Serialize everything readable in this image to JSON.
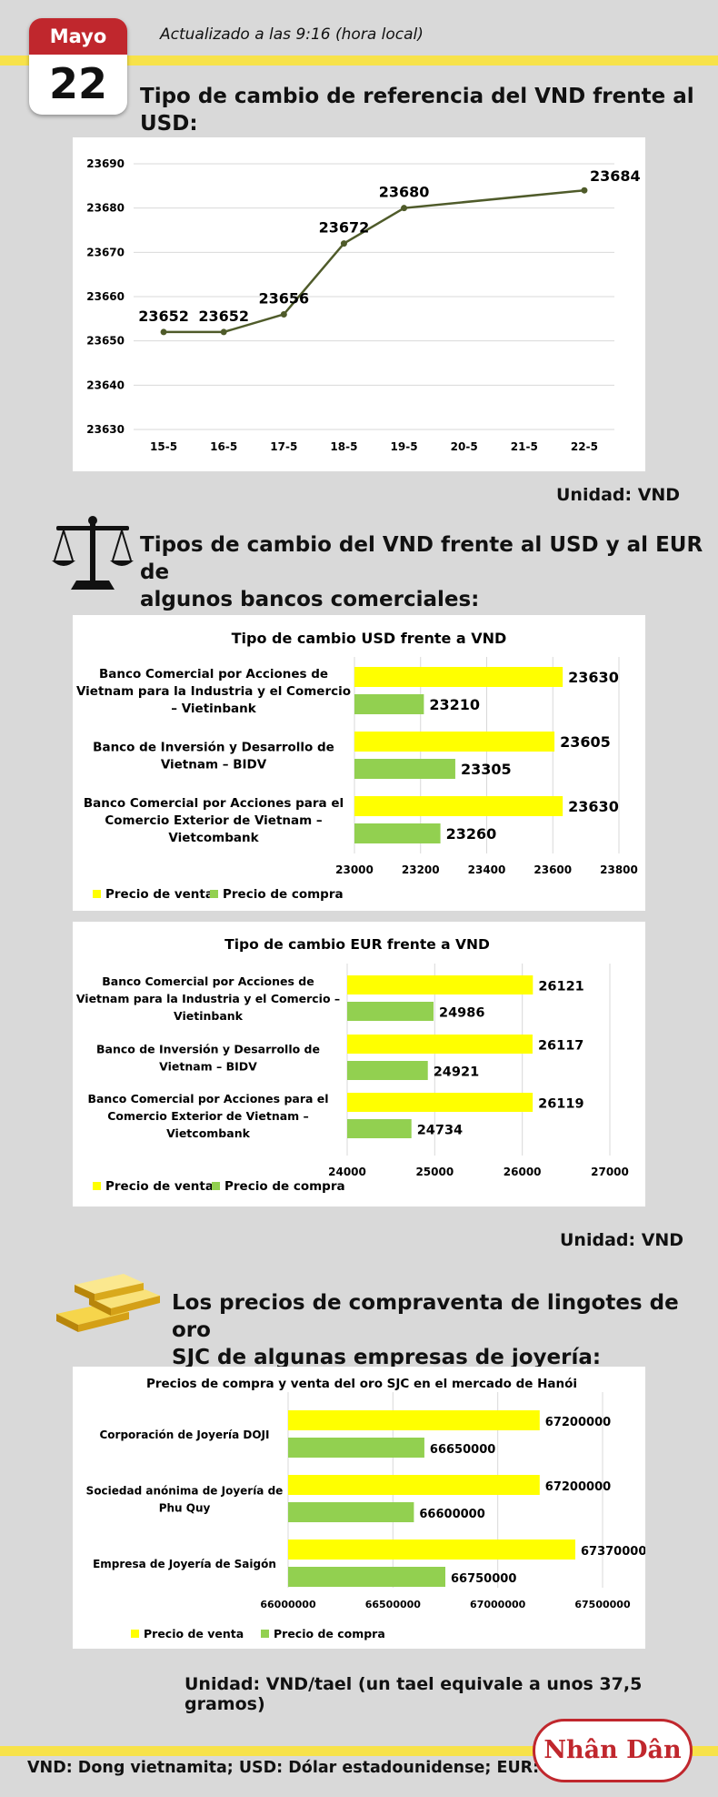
{
  "header": {
    "month": "Mayo",
    "day": "22",
    "updated": "Actualizado a las 9:16 (hora local)",
    "title": "Tipo de cambio de referencia del VND frente al USD:",
    "unit": "Unidad: VND"
  },
  "banks_section": {
    "title_line1": "Tipos de cambio del VND frente al USD y al EUR de",
    "title_line2": "algunos bancos comerciales:",
    "unit": "Unidad: VND",
    "icon": "scale-icon"
  },
  "gold_section": {
    "title_line1": "Los precios de compraventa de lingotes de oro",
    "title_line2": "SJC de algunas empresas de joyería:",
    "unit": "Unidad: VND/tael (un tael equivale a unos 37,5 gramos)",
    "icon": "gold-bars-icon"
  },
  "footer": {
    "text": "VND: Dong vietnamita; USD: Dólar estadounidense; EUR: Euro",
    "logo": "Nhân Dân"
  },
  "colors": {
    "sale": "#ffff00",
    "buy": "#92d050",
    "line": "#4f5b2a",
    "red": "#c0272d",
    "band": "#f7e24a"
  },
  "chart_data": [
    {
      "type": "line",
      "title": "",
      "categories": [
        "15-5",
        "16-5",
        "17-5",
        "18-5",
        "19-5",
        "20-5",
        "21-5",
        "22-5"
      ],
      "x": [
        "15-5",
        "16-5",
        "17-5",
        "18-5",
        "19-5",
        "22-5"
      ],
      "values": [
        23652,
        23652,
        23656,
        23672,
        23680,
        23684
      ],
      "point_indices": [
        0,
        1,
        2,
        3,
        4,
        7
      ],
      "ylim": [
        23630,
        23690
      ],
      "yticks": [
        23630,
        23640,
        23650,
        23660,
        23670,
        23680,
        23690
      ],
      "grid": true
    },
    {
      "type": "bar",
      "title": "Tipo de cambio USD frente a VND",
      "categories": [
        [
          "Banco Comercial por Acciones de",
          "Vietnam para la Industria y el Comercio",
          "– Vietinbank"
        ],
        [
          "Banco de Inversión y Desarrollo de",
          "Vietnam – BIDV"
        ],
        [
          "Banco Comercial por Acciones para el",
          "Comercio Exterior de Vietnam –",
          "Vietcombank"
        ]
      ],
      "series": [
        {
          "name": "Precio de venta",
          "values": [
            23630,
            23605,
            23630
          ]
        },
        {
          "name": "Precio de compra",
          "values": [
            23210,
            23305,
            23260
          ]
        }
      ],
      "xlim": [
        23000,
        23800
      ],
      "xticks": [
        "23000",
        "23200",
        "23400",
        "23600",
        "23800"
      ],
      "legend": "bottom-left"
    },
    {
      "type": "bar",
      "title": "Tipo de cambio EUR frente a VND",
      "categories": [
        [
          "Banco Comercial por Acciones de",
          "Vietnam para la Industria y el Comercio –",
          "Vietinbank"
        ],
        [
          "Banco de Inversión y Desarrollo de",
          "Vietnam – BIDV"
        ],
        [
          "Banco Comercial por Acciones para el",
          "Comercio Exterior de Vietnam –",
          "Vietcombank"
        ]
      ],
      "series": [
        {
          "name": "Precio de venta",
          "values": [
            26121,
            26117,
            26119
          ]
        },
        {
          "name": "Precio de compra",
          "values": [
            24986,
            24921,
            24734
          ]
        }
      ],
      "xlim": [
        24000,
        27000
      ],
      "xticks": [
        "24000",
        "25000",
        "26000",
        "27000"
      ],
      "legend": "bottom-left"
    },
    {
      "type": "bar",
      "title": "Precios de compra y venta del oro SJC en el mercado de Hanói",
      "categories": [
        [
          "Corporación de Joyería DOJI"
        ],
        [
          "Sociedad anónima de Joyería de",
          "Phu Quy"
        ],
        [
          "Empresa de Joyería de Saigón"
        ]
      ],
      "series": [
        {
          "name": "Precio de venta",
          "values": [
            67200000,
            67200000,
            67370000
          ]
        },
        {
          "name": "Precio de compra",
          "values": [
            66650000,
            66600000,
            66750000
          ]
        }
      ],
      "xlim": [
        66000000,
        67500000
      ],
      "xticks": [
        "66000000",
        "66500000",
        "67000000",
        "67500000"
      ],
      "legend": "bottom-left"
    }
  ]
}
